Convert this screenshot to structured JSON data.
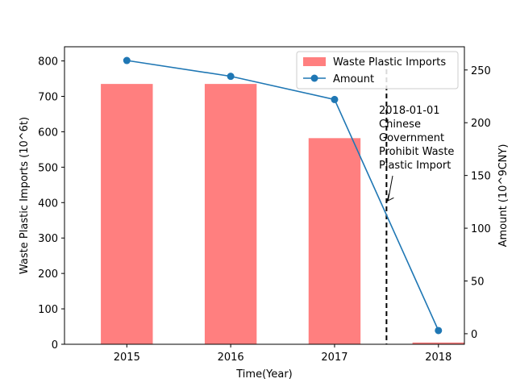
{
  "chart_data": {
    "type": "bar+line",
    "categories": [
      "2015",
      "2016",
      "2017",
      "2018"
    ],
    "xlabel": "Time(Year)",
    "ylabel_left": "Waste Plastic Imports (10^6t)",
    "ylabel_right": "Amount (10^9CNY)",
    "ylim_left": [
      0,
      840
    ],
    "ylim_right": [
      -10,
      272
    ],
    "yticks_left": [
      0,
      100,
      200,
      300,
      400,
      500,
      600,
      700,
      800
    ],
    "yticks_right": [
      0,
      50,
      100,
      150,
      200,
      250
    ],
    "series": [
      {
        "name": "Waste Plastic Imports",
        "kind": "bar",
        "axis": "left",
        "color": "#ff7f7f",
        "values": [
          735,
          735,
          582,
          5
        ]
      },
      {
        "name": "Amount",
        "kind": "line",
        "axis": "right",
        "color": "#1f77b4",
        "marker": "circle",
        "values": [
          259,
          244,
          222,
          3
        ]
      }
    ],
    "vline": {
      "x": 2017.5,
      "style": "dashed",
      "color": "#000000"
    },
    "annotation": {
      "lines": [
        "2018-01-01",
        "Chinese",
        "Government",
        "Prohibit Waste",
        "Plastic Import"
      ],
      "arrow_target_value_right": 125
    },
    "legend": {
      "position": "top-right",
      "entries": [
        "Waste Plastic Imports",
        "Amount"
      ]
    },
    "grid": false
  }
}
